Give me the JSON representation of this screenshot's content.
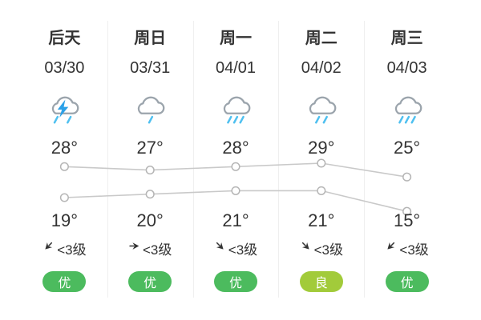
{
  "colors": {
    "text": "#333333",
    "line": "#c9c9c9",
    "marker_stroke": "#b5b5b5",
    "marker_fill": "#ffffff",
    "divider": "#efefef",
    "cloud": "#9ba4ac",
    "rain": "#4fc0f0",
    "bolt": "#2ba1e8",
    "wind_arrow": "#333333",
    "aqi_good": "#4cbb5e",
    "aqi_moderate": "#a2cb3a"
  },
  "columns": [
    {
      "day": "后天",
      "date": "03/30",
      "icon": {
        "name": "thunderstorm-icon",
        "bolt": true,
        "drops": 2
      },
      "high": "28°",
      "low": "19°",
      "wind_dir_deg": 135,
      "wind": "<3级",
      "aqi": "优",
      "aqi_level": "good"
    },
    {
      "day": "周日",
      "date": "03/31",
      "icon": {
        "name": "light-rain-icon",
        "bolt": false,
        "drops": 1
      },
      "high": "27°",
      "low": "20°",
      "wind_dir_deg": 0,
      "wind": "<3级",
      "aqi": "优",
      "aqi_level": "good"
    },
    {
      "day": "周一",
      "date": "04/01",
      "icon": {
        "name": "moderate-rain-icon",
        "bolt": false,
        "drops": 3
      },
      "high": "28°",
      "low": "21°",
      "wind_dir_deg": 45,
      "wind": "<3级",
      "aqi": "优",
      "aqi_level": "good"
    },
    {
      "day": "周二",
      "date": "04/02",
      "icon": {
        "name": "rain-icon",
        "bolt": false,
        "drops": 2
      },
      "high": "29°",
      "low": "21°",
      "wind_dir_deg": 45,
      "wind": "<3级",
      "aqi": "良",
      "aqi_level": "moderate"
    },
    {
      "day": "周三",
      "date": "04/03",
      "icon": {
        "name": "moderate-rain-icon",
        "bolt": false,
        "drops": 3
      },
      "high": "25°",
      "low": "15°",
      "wind_dir_deg": 135,
      "wind": "<3级",
      "aqi": "优",
      "aqi_level": "good"
    }
  ],
  "chart_data": {
    "type": "line",
    "categories": [
      "后天",
      "周日",
      "周一",
      "周二",
      "周三"
    ],
    "series": [
      {
        "name": "high-temperature",
        "values": [
          28,
          27,
          28,
          29,
          25
        ]
      },
      {
        "name": "low-temperature",
        "values": [
          19,
          20,
          21,
          21,
          15
        ]
      }
    ],
    "unit": "°C",
    "grid": false,
    "legend": "none",
    "marker": "open-circle"
  }
}
